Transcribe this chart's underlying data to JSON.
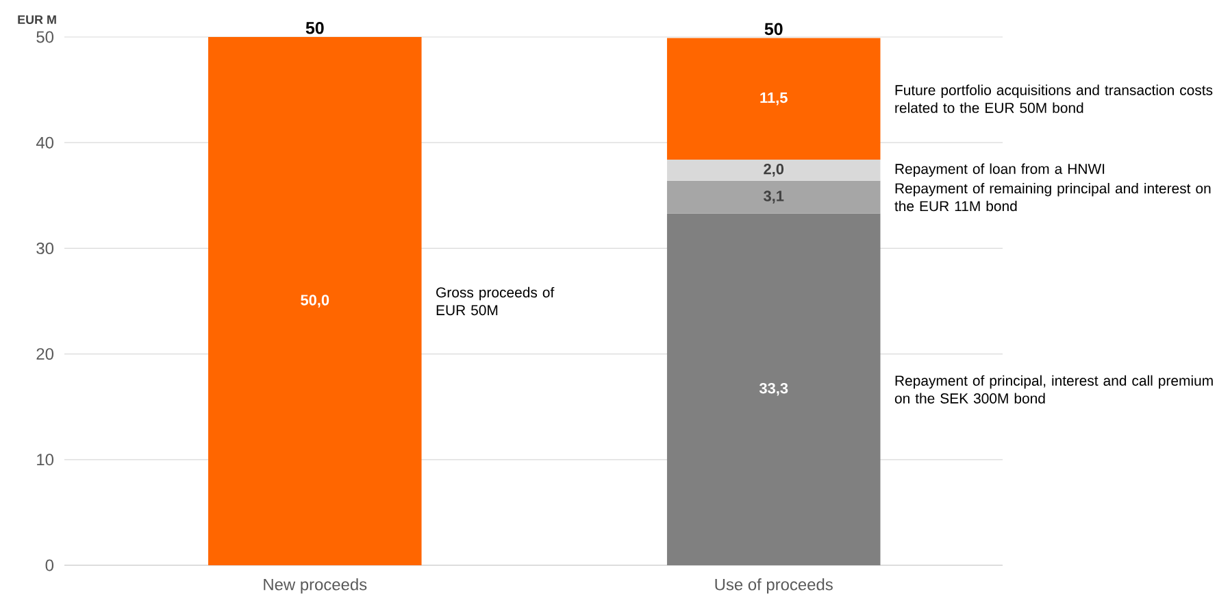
{
  "chart_data": {
    "type": "bar",
    "stacked": true,
    "ylabel": "EUR M",
    "categories": [
      "New proceeds",
      "Use of proceeds"
    ],
    "series": [
      {
        "name": "Gross proceeds of EUR 50M",
        "color": "#ff6600",
        "values": [
          50.0,
          null
        ],
        "value_labels": [
          "50,0",
          null
        ]
      },
      {
        "name": "Repayment of principal, interest and call premium on the SEK 300M bond",
        "color": "#808080",
        "values": [
          null,
          33.3
        ],
        "value_labels": [
          null,
          "33,3"
        ]
      },
      {
        "name": "Repayment of remaining principal and interest on the EUR 11M bond",
        "color": "#a6a6a6",
        "values": [
          null,
          3.1
        ],
        "value_labels": [
          null,
          "3,1"
        ]
      },
      {
        "name": "Repayment of loan from a HNWI",
        "color": "#d9d9d9",
        "values": [
          null,
          2.0
        ],
        "value_labels": [
          null,
          "2,0"
        ]
      },
      {
        "name": "Future portfolio acquisitions and transaction costs related to the EUR 50M bond",
        "color": "#ff6600",
        "values": [
          null,
          11.5
        ],
        "value_labels": [
          null,
          "11,5"
        ]
      }
    ],
    "totals": [
      "50",
      "50"
    ],
    "ylim": [
      0,
      50
    ],
    "yticks": [
      0,
      10,
      20,
      30,
      40,
      50
    ],
    "grid": "y"
  }
}
